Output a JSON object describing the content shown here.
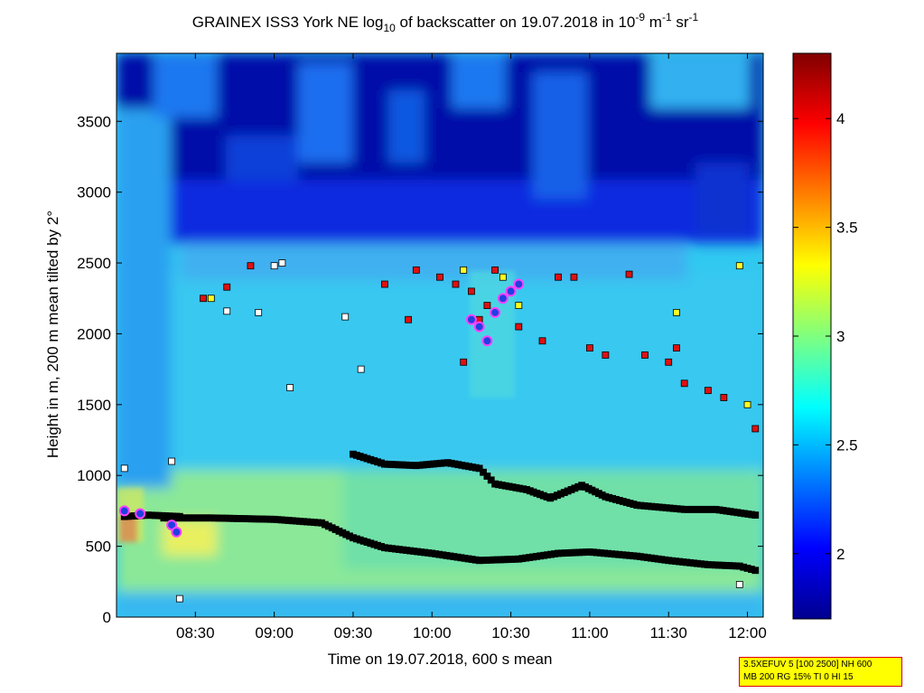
{
  "chart_data": {
    "type": "heatmap",
    "title_main": "GRAINEX ISS3 York NE log",
    "title_sub_10": "10",
    "title_mid": " of backscatter on 19.07.2018 in 10",
    "title_exp_9": "-9",
    "title_m": " m",
    "title_exp_1a": "-1",
    "title_sr": " sr",
    "title_exp_1b": "-1",
    "xlabel": "Time on 19.07.2018, 600 s mean",
    "ylabel": "Height in m, 200 m mean tilted by 2°",
    "x_range_hours": [
      8.0,
      12.1
    ],
    "ylim": [
      0,
      3980
    ],
    "x_ticks": [
      {
        "value": 8.5,
        "label": "08:30"
      },
      {
        "value": 9.0,
        "label": "09:00"
      },
      {
        "value": 9.5,
        "label": "09:30"
      },
      {
        "value": 10.0,
        "label": "10:00"
      },
      {
        "value": 10.5,
        "label": "10:30"
      },
      {
        "value": 11.0,
        "label": "11:00"
      },
      {
        "value": 11.5,
        "label": "11:30"
      },
      {
        "value": 12.0,
        "label": "12:00"
      }
    ],
    "y_ticks": [
      {
        "value": 0,
        "label": "0"
      },
      {
        "value": 500,
        "label": "500"
      },
      {
        "value": 1000,
        "label": "1000"
      },
      {
        "value": 1500,
        "label": "1500"
      },
      {
        "value": 2000,
        "label": "2000"
      },
      {
        "value": 2500,
        "label": "2500"
      },
      {
        "value": 3000,
        "label": "3000"
      },
      {
        "value": 3500,
        "label": "3500"
      }
    ],
    "colorbar": {
      "colormap": "jet",
      "range": [
        1.7,
        4.3
      ],
      "ticks": [
        {
          "value": 2.0,
          "label": "2"
        },
        {
          "value": 2.5,
          "label": "2.5"
        },
        {
          "value": 3.0,
          "label": "3"
        },
        {
          "value": 3.5,
          "label": "3.5"
        },
        {
          "value": 4.0,
          "label": "4"
        }
      ]
    },
    "black_markers_lower_layer": [
      [
        8.3,
        700
      ],
      [
        8.6,
        700
      ],
      [
        9.0,
        690
      ],
      [
        9.3,
        665
      ],
      [
        9.5,
        560
      ],
      [
        9.7,
        490
      ],
      [
        10.0,
        450
      ],
      [
        10.3,
        400
      ],
      [
        10.55,
        410
      ],
      [
        10.8,
        450
      ],
      [
        11.0,
        460
      ],
      [
        11.3,
        430
      ],
      [
        11.5,
        400
      ],
      [
        11.75,
        370
      ],
      [
        11.95,
        360
      ],
      [
        12.05,
        330
      ]
    ],
    "black_markers_upper_layer": [
      [
        9.5,
        1150
      ],
      [
        9.7,
        1080
      ],
      [
        9.9,
        1070
      ],
      [
        10.1,
        1090
      ],
      [
        10.3,
        1050
      ],
      [
        10.4,
        940
      ],
      [
        10.6,
        900
      ],
      [
        10.75,
        840
      ],
      [
        10.95,
        930
      ],
      [
        11.1,
        850
      ],
      [
        11.3,
        790
      ],
      [
        11.6,
        760
      ],
      [
        11.8,
        760
      ],
      [
        12.05,
        720
      ]
    ],
    "black_markers_early_layer": [
      [
        8.05,
        710
      ],
      [
        8.2,
        720
      ],
      [
        8.4,
        710
      ]
    ],
    "red_markers": [
      [
        8.55,
        2250
      ],
      [
        8.7,
        2330
      ],
      [
        8.85,
        2480
      ],
      [
        9.7,
        2350
      ],
      [
        9.85,
        2100
      ],
      [
        9.9,
        2450
      ],
      [
        10.05,
        2400
      ],
      [
        10.15,
        2350
      ],
      [
        10.25,
        2300
      ],
      [
        10.3,
        2100
      ],
      [
        10.35,
        2200
      ],
      [
        10.2,
        1800
      ],
      [
        10.4,
        2450
      ],
      [
        10.55,
        2050
      ],
      [
        10.7,
        1950
      ],
      [
        10.8,
        2400
      ],
      [
        10.9,
        2400
      ],
      [
        11.0,
        1900
      ],
      [
        11.1,
        1850
      ],
      [
        11.25,
        2420
      ],
      [
        11.35,
        1850
      ],
      [
        11.5,
        1800
      ],
      [
        11.55,
        1900
      ],
      [
        11.6,
        1650
      ],
      [
        11.75,
        1600
      ],
      [
        11.85,
        1550
      ],
      [
        12.05,
        1330
      ]
    ],
    "yellow_markers": [
      [
        8.6,
        2250
      ],
      [
        10.2,
        2450
      ],
      [
        10.45,
        2400
      ],
      [
        10.55,
        2200
      ],
      [
        11.55,
        2150
      ],
      [
        12.0,
        1500
      ],
      [
        11.95,
        2480
      ]
    ],
    "white_markers": [
      [
        8.7,
        2160
      ],
      [
        8.9,
        2150
      ],
      [
        9.0,
        2480
      ],
      [
        9.45,
        2120
      ],
      [
        9.55,
        1750
      ],
      [
        9.1,
        1620
      ],
      [
        9.05,
        2500
      ],
      [
        8.35,
        1100
      ],
      [
        8.05,
        1050
      ],
      [
        8.4,
        130
      ],
      [
        11.95,
        230
      ]
    ],
    "magenta_markers": [
      [
        10.25,
        2100
      ],
      [
        10.3,
        2050
      ],
      [
        10.35,
        1950
      ],
      [
        10.4,
        2150
      ],
      [
        10.45,
        2250
      ],
      [
        10.5,
        2300
      ],
      [
        10.55,
        2350
      ],
      [
        8.05,
        750
      ],
      [
        8.15,
        730
      ],
      [
        8.35,
        650
      ],
      [
        8.38,
        600
      ]
    ]
  },
  "param_box": {
    "line1": "3.5XEFUV 5 [100 2500] NH 600",
    "line2": "MB 200 RG 15% TI 0 HI 15"
  }
}
